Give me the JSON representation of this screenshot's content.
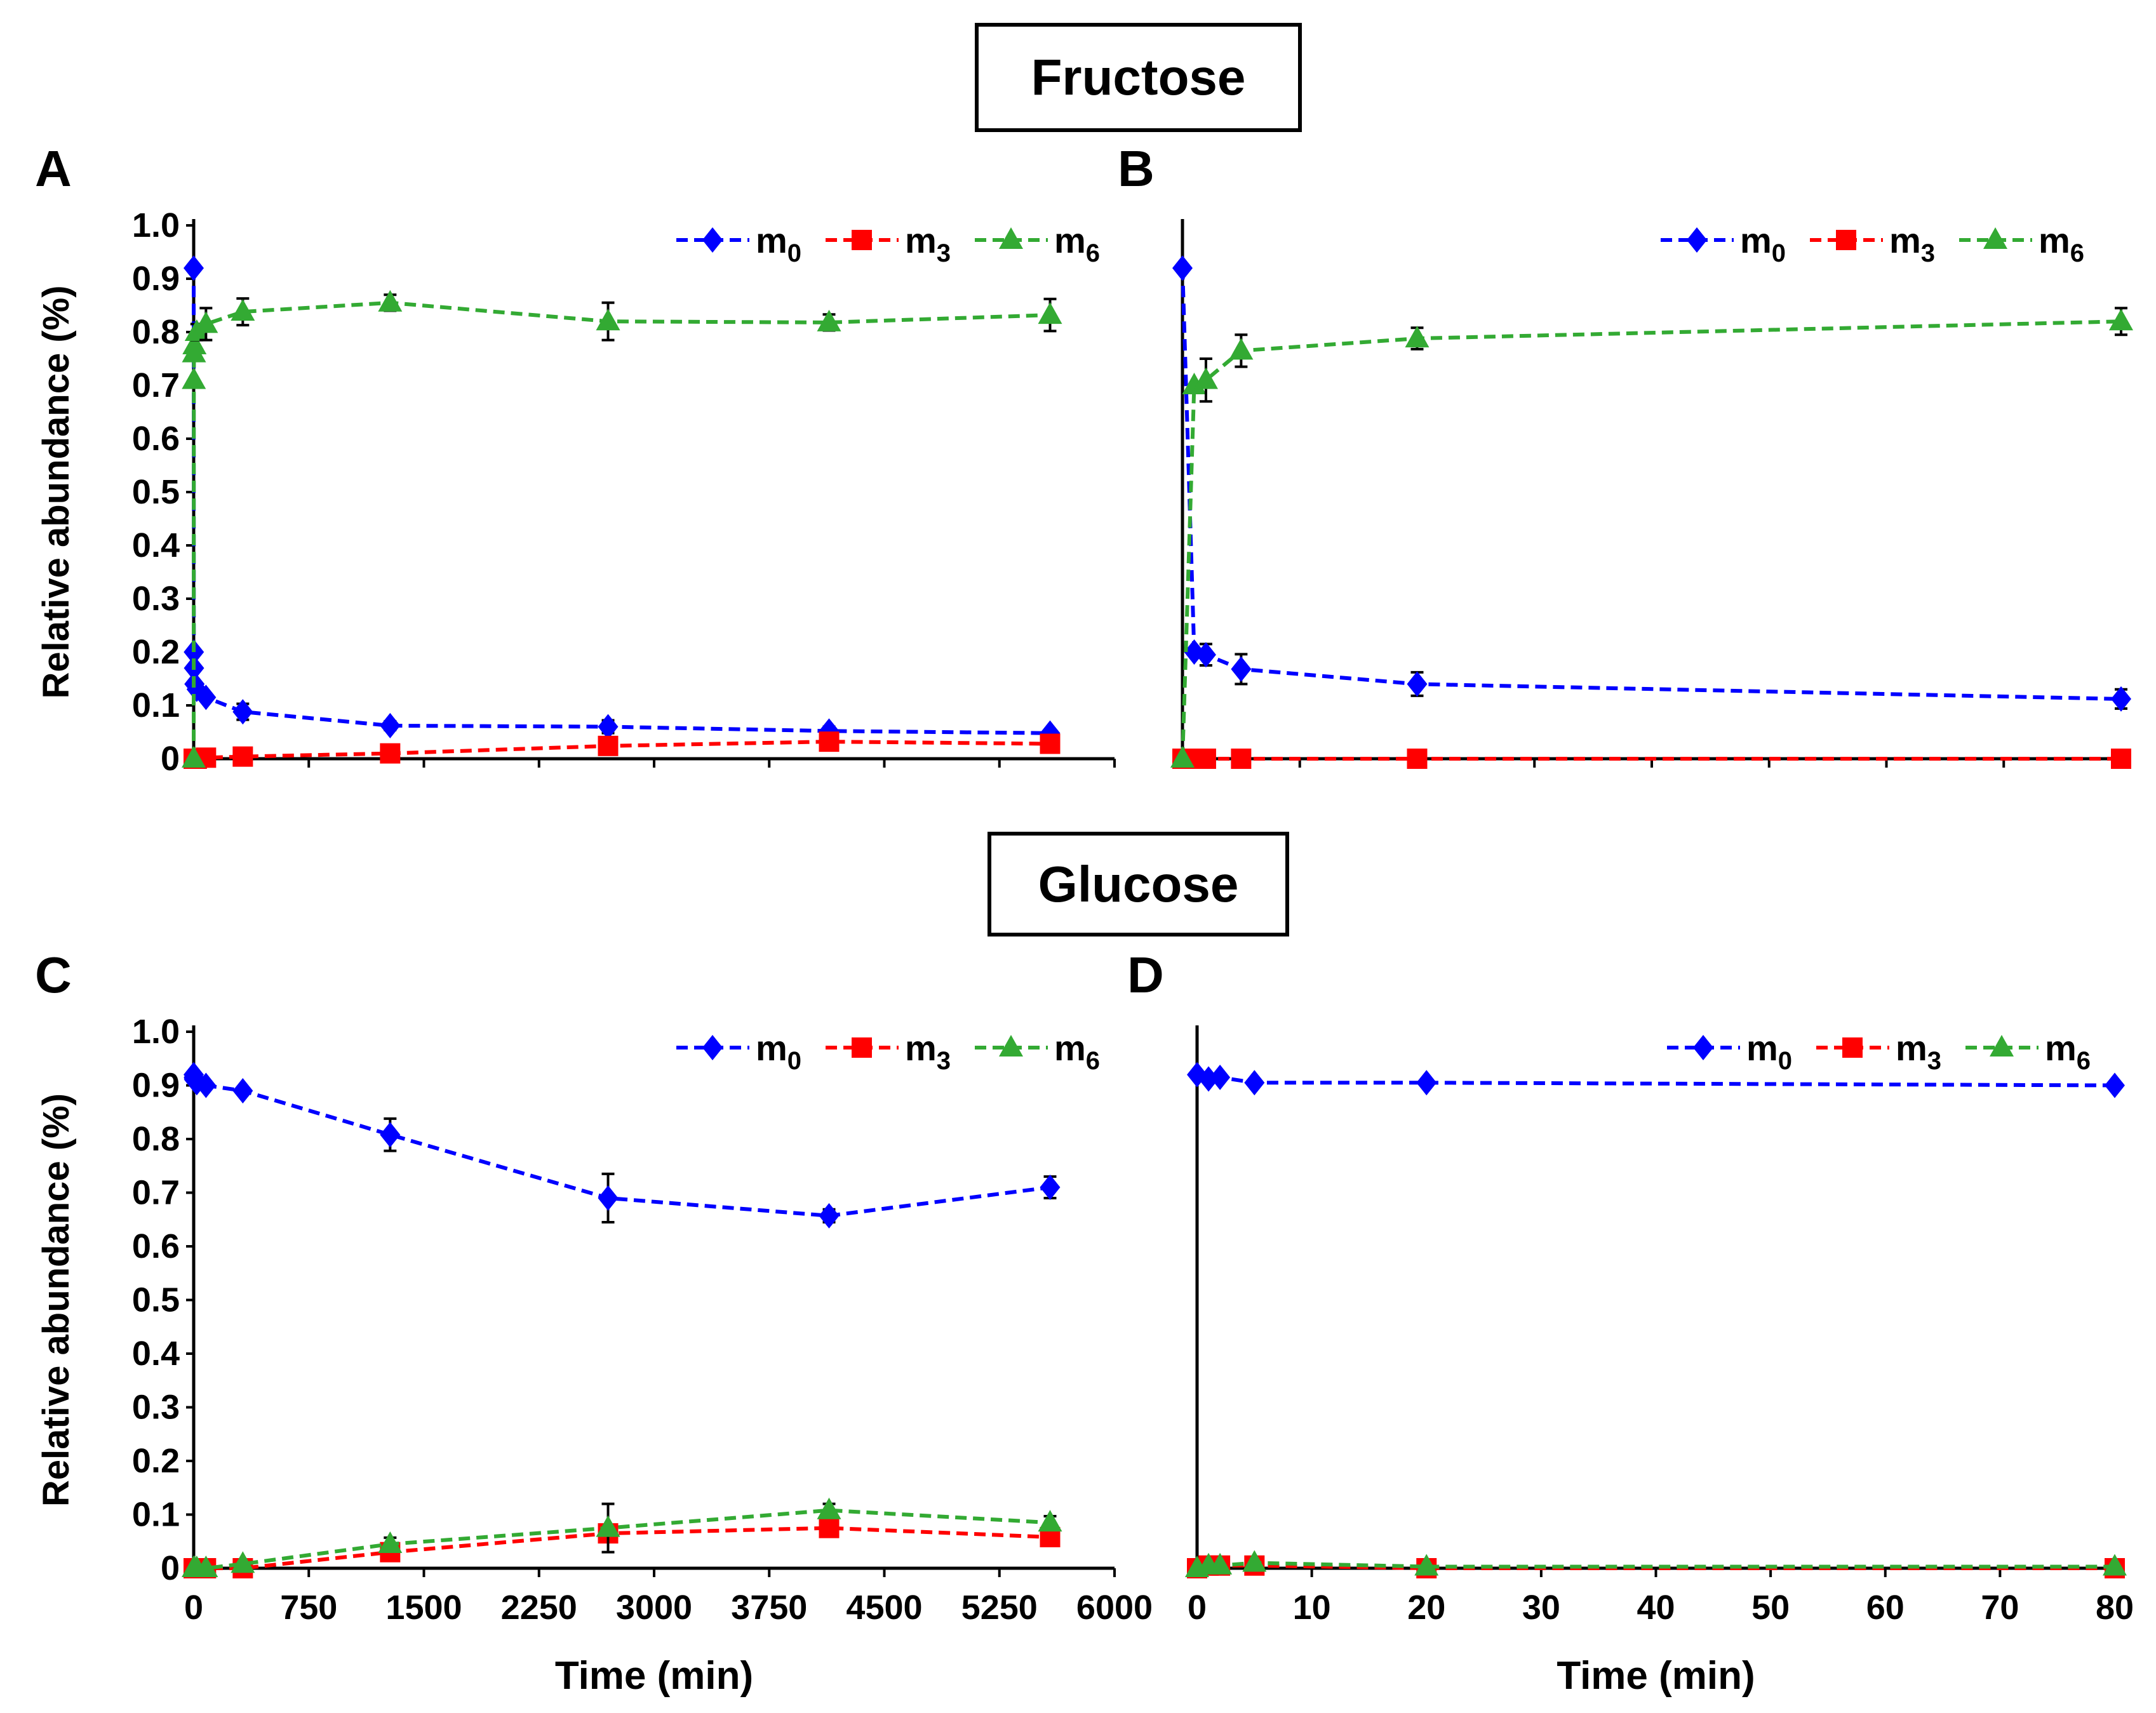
{
  "headings": {
    "fructose": "Fructose",
    "glucose": "Glucose"
  },
  "colors": {
    "m0": "#0000ff",
    "m3": "#ff0000",
    "m6": "#33aa33",
    "axis": "#000000",
    "errorbar": "#000000"
  },
  "chart_data": [
    {
      "id": "A",
      "panel_label": "A",
      "type": "line",
      "group": "Fructose",
      "title": "",
      "xlabel": "",
      "ylabel": "Relative abundance (%)",
      "xlim": [
        0,
        6000
      ],
      "ylim": [
        0,
        1.0
      ],
      "xticks_major": [
        0,
        750,
        1500,
        2250,
        3000,
        3750,
        4500,
        5250,
        6000
      ],
      "xtick_labels": [],
      "yticks": [
        0,
        0.1,
        0.2,
        0.3,
        0.4,
        0.5,
        0.6,
        0.7,
        0.8,
        0.9,
        1.0
      ],
      "ytick_labels": [
        "0",
        "0.1",
        "0.2",
        "0.3",
        "0.4",
        "0.5",
        "0.6",
        "0.7",
        "0.8",
        "0.9",
        "1.0"
      ],
      "legend_position": "top-right",
      "series": [
        {
          "name": "m0",
          "sub": "0",
          "marker": "diamond",
          "x": [
            0,
            1,
            2,
            5,
            20,
            80,
            320,
            1280,
            2700,
            4140,
            5580
          ],
          "y": [
            0.92,
            0.2,
            0.17,
            0.14,
            0.13,
            0.115,
            0.088,
            0.062,
            0.06,
            0.052,
            0.048
          ],
          "err": [
            0,
            0,
            0,
            0,
            0,
            0,
            0.015,
            0.008,
            0.012,
            0.008,
            0.006
          ]
        },
        {
          "name": "m3",
          "sub": "3",
          "marker": "square",
          "x": [
            0,
            1,
            2,
            5,
            20,
            80,
            320,
            1280,
            2700,
            4140,
            5580
          ],
          "y": [
            0,
            0,
            0,
            0,
            0,
            0.002,
            0.004,
            0.01,
            0.024,
            0.032,
            0.028
          ],
          "err": [
            0,
            0,
            0,
            0,
            0,
            0,
            0,
            0,
            0,
            0,
            0
          ]
        },
        {
          "name": "m6",
          "sub": "6",
          "marker": "triangle",
          "x": [
            0,
            1,
            2,
            5,
            20,
            80,
            320,
            1280,
            2700,
            4140,
            5580
          ],
          "y": [
            0,
            0.71,
            0.76,
            0.775,
            0.8,
            0.815,
            0.838,
            0.855,
            0.82,
            0.818,
            0.832
          ],
          "err": [
            0,
            0,
            0,
            0,
            0.015,
            0.03,
            0.025,
            0.015,
            0.035,
            0.015,
            0.03
          ]
        }
      ]
    },
    {
      "id": "B",
      "panel_label": "B",
      "type": "line",
      "group": "Fructose",
      "title": "",
      "xlabel": "",
      "ylabel": "",
      "xlim": [
        0,
        80
      ],
      "ylim": [
        0,
        1.0
      ],
      "xticks_major": [
        0,
        10,
        20,
        30,
        40,
        50,
        60,
        70,
        80
      ],
      "xtick_labels": [],
      "yticks": [],
      "ytick_labels": [],
      "legend_position": "top-right",
      "series": [
        {
          "name": "m0",
          "sub": "0",
          "marker": "diamond",
          "x": [
            0,
            1,
            2,
            5,
            20,
            80
          ],
          "y": [
            0.92,
            0.2,
            0.195,
            0.168,
            0.14,
            0.112
          ],
          "err": [
            0,
            0,
            0.02,
            0.028,
            0.022,
            0.018
          ]
        },
        {
          "name": "m3",
          "sub": "3",
          "marker": "square",
          "x": [
            0,
            1,
            2,
            5,
            20,
            80
          ],
          "y": [
            0,
            0,
            0,
            0,
            0,
            0
          ],
          "err": [
            0,
            0,
            0,
            0,
            0,
            0
          ]
        },
        {
          "name": "m6",
          "sub": "6",
          "marker": "triangle",
          "x": [
            0,
            1,
            2,
            5,
            20,
            80
          ],
          "y": [
            0,
            0.7,
            0.71,
            0.765,
            0.788,
            0.82
          ],
          "err": [
            0,
            0,
            0.04,
            0.03,
            0.02,
            0.025
          ]
        }
      ]
    },
    {
      "id": "C",
      "panel_label": "C",
      "type": "line",
      "group": "Glucose",
      "title": "",
      "xlabel": "Time (min)",
      "ylabel": "Relative abundance (%)",
      "xlim": [
        0,
        6000
      ],
      "ylim": [
        0,
        1.0
      ],
      "xticks_major": [
        0,
        750,
        1500,
        2250,
        3000,
        3750,
        4500,
        5250,
        6000
      ],
      "xtick_labels": [
        "0",
        "750",
        "1500",
        "2250",
        "3000",
        "3750",
        "4500",
        "5250",
        "6000"
      ],
      "yticks": [
        0,
        0.1,
        0.2,
        0.3,
        0.4,
        0.5,
        0.6,
        0.7,
        0.8,
        0.9,
        1.0
      ],
      "ytick_labels": [
        "0",
        "0.1",
        "0.2",
        "0.3",
        "0.4",
        "0.5",
        "0.6",
        "0.7",
        "0.8",
        "0.9",
        "1.0"
      ],
      "legend_position": "top-right",
      "series": [
        {
          "name": "m0",
          "sub": "0",
          "marker": "diamond",
          "x": [
            0,
            1,
            2,
            5,
            20,
            80,
            320,
            1280,
            2700,
            4140,
            5580
          ],
          "y": [
            0.92,
            0.915,
            0.912,
            0.91,
            0.905,
            0.9,
            0.89,
            0.808,
            0.69,
            0.657,
            0.71
          ],
          "err": [
            0,
            0,
            0,
            0,
            0,
            0,
            0,
            0.03,
            0.045,
            0.012,
            0.02
          ]
        },
        {
          "name": "m3",
          "sub": "3",
          "marker": "square",
          "x": [
            0,
            1,
            2,
            5,
            20,
            80,
            320,
            1280,
            2700,
            4140,
            5580
          ],
          "y": [
            0,
            0,
            0,
            0,
            0,
            0,
            0,
            0.03,
            0.065,
            0.075,
            0.058
          ],
          "err": [
            0,
            0,
            0,
            0,
            0,
            0,
            0,
            0.008,
            0.01,
            0.005,
            0.005
          ]
        },
        {
          "name": "m6",
          "sub": "6",
          "marker": "triangle",
          "x": [
            0,
            1,
            2,
            5,
            20,
            80,
            320,
            1280,
            2700,
            4140,
            5580
          ],
          "y": [
            0,
            0,
            0,
            0,
            0,
            0,
            0.008,
            0.045,
            0.075,
            0.108,
            0.085
          ],
          "err": [
            0,
            0,
            0,
            0,
            0,
            0,
            0,
            0.012,
            0.045,
            0.012,
            0.012
          ]
        }
      ]
    },
    {
      "id": "D",
      "panel_label": "D",
      "type": "line",
      "group": "Glucose",
      "title": "",
      "xlabel": "Time (min)",
      "ylabel": "",
      "xlim": [
        0,
        80
      ],
      "ylim": [
        0,
        1.0
      ],
      "xticks_major": [
        0,
        10,
        20,
        30,
        40,
        50,
        60,
        70,
        80
      ],
      "xtick_labels": [
        "0",
        "10",
        "20",
        "30",
        "40",
        "50",
        "60",
        "70",
        "80"
      ],
      "yticks": [],
      "ytick_labels": [],
      "legend_position": "top-right",
      "series": [
        {
          "name": "m0",
          "sub": "0",
          "marker": "diamond",
          "x": [
            0,
            1,
            2,
            5,
            20,
            80
          ],
          "y": [
            0.92,
            0.912,
            0.915,
            0.905,
            0.905,
            0.9
          ],
          "err": [
            0,
            0,
            0,
            0,
            0,
            0
          ]
        },
        {
          "name": "m3",
          "sub": "3",
          "marker": "square",
          "x": [
            0,
            1,
            2,
            5,
            20,
            80
          ],
          "y": [
            0,
            0.005,
            0.005,
            0.005,
            0,
            0
          ],
          "err": [
            0,
            0,
            0,
            0,
            0,
            0
          ]
        },
        {
          "name": "m6",
          "sub": "6",
          "marker": "triangle",
          "x": [
            0,
            1,
            2,
            5,
            20,
            80
          ],
          "y": [
            0,
            0.005,
            0.005,
            0.01,
            0.003,
            0.003
          ],
          "err": [
            0,
            0,
            0,
            0,
            0,
            0
          ]
        }
      ]
    }
  ]
}
